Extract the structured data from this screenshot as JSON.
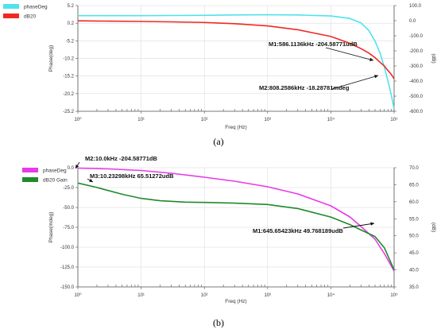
{
  "chart_data": [
    {
      "type": "line",
      "panel_label": "(a)",
      "xlabel": "Freq (Hz)",
      "ylabel": "Phase(deg)",
      "y2label": "(dB)",
      "xscale": "log",
      "xlim": [
        10,
        1000000
      ],
      "ylim": [
        -25.2,
        5.2
      ],
      "y2lim": [
        -600,
        100
      ],
      "grid": true,
      "legend_position": "top-left",
      "x_ticks": [
        {
          "value": 10,
          "label": "10⁰"
        },
        {
          "value": 100,
          "label": "10¹"
        },
        {
          "value": 1000,
          "label": "10²"
        },
        {
          "value": 10000,
          "label": "10³"
        },
        {
          "value": 100000,
          "label": "10⁴"
        },
        {
          "value": 1000000,
          "label": "10⁵"
        }
      ],
      "y_ticks": [
        "5.2",
        "0.2",
        "-5.2",
        "-10.2",
        "-15.2",
        "-20.2",
        "-25.2"
      ],
      "y2_ticks": [
        "100.0",
        "0.0",
        "-100.0",
        "-200.0",
        "-300.0",
        "-400.0",
        "-500.0",
        "-600.0"
      ],
      "series": [
        {
          "name": "phaseDeg",
          "color": "#4fe3ee",
          "axis": "left",
          "x": [
            10,
            30,
            100,
            300,
            1000,
            3000,
            10000,
            30000,
            100000,
            200000,
            300000,
            400000,
            500000,
            600000,
            700000,
            800000,
            900000,
            1000000
          ],
          "y": [
            2.3,
            2.3,
            2.3,
            2.35,
            2.4,
            2.5,
            2.55,
            2.5,
            2.2,
            1.5,
            0.2,
            -2.0,
            -5.0,
            -8.5,
            -12.5,
            -16.5,
            -20.5,
            -24.5
          ]
        },
        {
          "name": "dB20",
          "color": "#ee2a22",
          "axis": "right",
          "x": [
            10,
            30,
            100,
            300,
            1000,
            3000,
            10000,
            30000,
            100000,
            200000,
            300000,
            400000,
            500000,
            600000,
            700000,
            800000,
            900000,
            1000000
          ],
          "y": [
            -1,
            -3,
            -5,
            -8,
            -12,
            -20,
            -35,
            -60,
            -105,
            -150,
            -185,
            -215,
            -245,
            -275,
            -300,
            -330,
            -355,
            -385
          ]
        }
      ],
      "markers": [
        {
          "text": "M1:586.1136kHz  -204.58771udB",
          "x": 586113.6,
          "y": -204.58771,
          "axis": "right",
          "position": "upper-left"
        },
        {
          "text": "M2:808.2586kHz -18.28781mdeg",
          "x": 808258.6,
          "y": -18.28781,
          "axis": "left",
          "position": "lower-left"
        }
      ]
    },
    {
      "type": "line",
      "panel_label": "(b)",
      "xlabel": "Freq (Hz)",
      "ylabel": "Phase(mdeg)",
      "y2label": "(dB)",
      "xscale": "log",
      "xlim": [
        10,
        1000000
      ],
      "ylim": [
        -150,
        0
      ],
      "y2lim": [
        35,
        70
      ],
      "grid": true,
      "legend_position": "top-left",
      "x_ticks": [
        {
          "value": 10,
          "label": "10⁰"
        },
        {
          "value": 100,
          "label": "10¹"
        },
        {
          "value": 1000,
          "label": "10²"
        },
        {
          "value": 10000,
          "label": "10³"
        },
        {
          "value": 100000,
          "label": "10⁴"
        },
        {
          "value": 1000000,
          "label": "10⁵"
        }
      ],
      "y_ticks": [
        "0.0",
        "-25.0",
        "-50.0",
        "-75.0",
        "-100.0",
        "-125.0",
        "-150.0"
      ],
      "y2_ticks": [
        "70.0",
        "65.0",
        "60.0",
        "55.0",
        "50.0",
        "45.0",
        "40.0",
        "35.0"
      ],
      "series": [
        {
          "name": "phaseDeg",
          "color": "#e83ae8",
          "axis": "left",
          "x": [
            10,
            30,
            100,
            300,
            1000,
            3000,
            10000,
            30000,
            100000,
            200000,
            300000,
            500000,
            700000,
            1000000
          ],
          "y": [
            -0.5,
            -1.5,
            -3.5,
            -7,
            -12,
            -17,
            -24,
            -33,
            -48,
            -62,
            -74,
            -90,
            -108,
            -130
          ]
        },
        {
          "name": "dB20 Gain",
          "color": "#1f8a2a",
          "axis": "right",
          "x": [
            10,
            20,
            50,
            100,
            200,
            500,
            1000,
            3000,
            10000,
            30000,
            100000,
            200000,
            300000,
            500000,
            700000,
            1000000
          ],
          "y": [
            65.5,
            64.2,
            62.2,
            61.0,
            60.3,
            59.9,
            59.8,
            59.6,
            59.2,
            58.0,
            55.5,
            53.3,
            51.7,
            49.8,
            46.5,
            40.0
          ]
        }
      ],
      "markers": [
        {
          "text": "M2:10.0kHz  -204.58771dB",
          "x": 10,
          "y": 0,
          "axis": "left",
          "position": "upper-right"
        },
        {
          "text": "M3:10.23298kHz  65.51272udB",
          "x": 10,
          "y": 65.5,
          "axis": "right",
          "position": "upper-right"
        },
        {
          "text": "M1:645.65423kHz 49.768189udB",
          "x": 645654.23,
          "y": 49.768189,
          "axis": "right",
          "position": "lower-left"
        }
      ]
    }
  ]
}
